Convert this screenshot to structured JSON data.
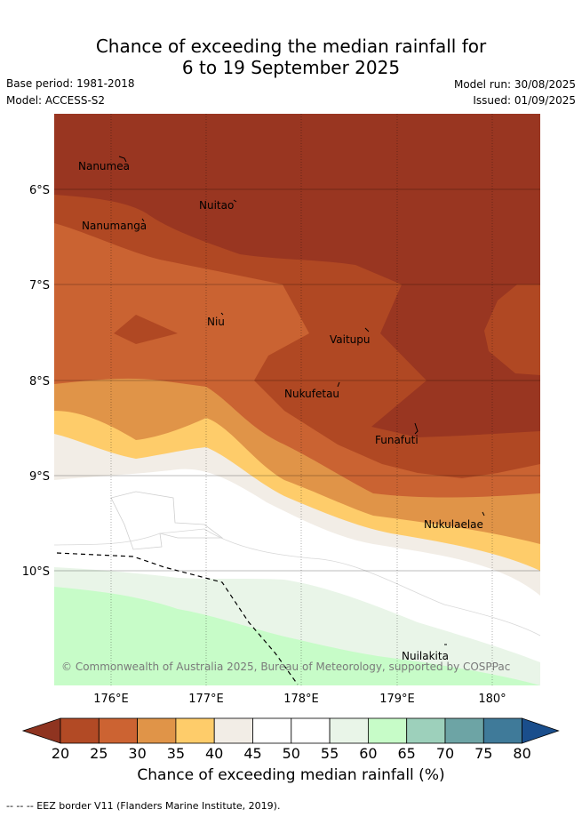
{
  "title_line1": "Chance of exceeding the median rainfall for",
  "title_line2": "6 to 19 September 2025",
  "base_period": "Base period: 1981-2018",
  "model": "Model: ACCESS-S2",
  "model_run": "Model run: 30/08/2025",
  "issued": "Issued: 01/09/2025",
  "lat_labels": [
    "6°S",
    "7°S",
    "8°S",
    "9°S",
    "10°S"
  ],
  "lon_labels": [
    "176°E",
    "177°E",
    "178°E",
    "179°E",
    "180°"
  ],
  "places": [
    "Nanumea",
    "Nuitao",
    "Nanumanga",
    "Niu",
    "Vaitupu",
    "Nukufetau",
    "Funafuti",
    "Nukulaelae",
    "Nuilakita"
  ],
  "copyright": "© Commonwealth of Australia 2025, Bureau of Meteorology, supported by COSPPac",
  "colorbar": {
    "ticks": [
      "20",
      "25",
      "30",
      "35",
      "40",
      "45",
      "50",
      "55",
      "60",
      "65",
      "70",
      "75",
      "80"
    ],
    "colors": [
      "#8f3420",
      "#b24a25",
      "#cc6332",
      "#e09448",
      "#fecc6a",
      "#f2ede6",
      "#ffffff",
      "#ffffff",
      "#e9f5e8",
      "#c7fcc8",
      "#9dd0bb",
      "#6da4a5",
      "#3f7a99",
      "#1a4e8c"
    ],
    "label": "Chance of exceeding median rainfall (%)"
  },
  "footer": "--  --  -- EEZ border V11 (Flanders Marine Institute, 2019)."
}
